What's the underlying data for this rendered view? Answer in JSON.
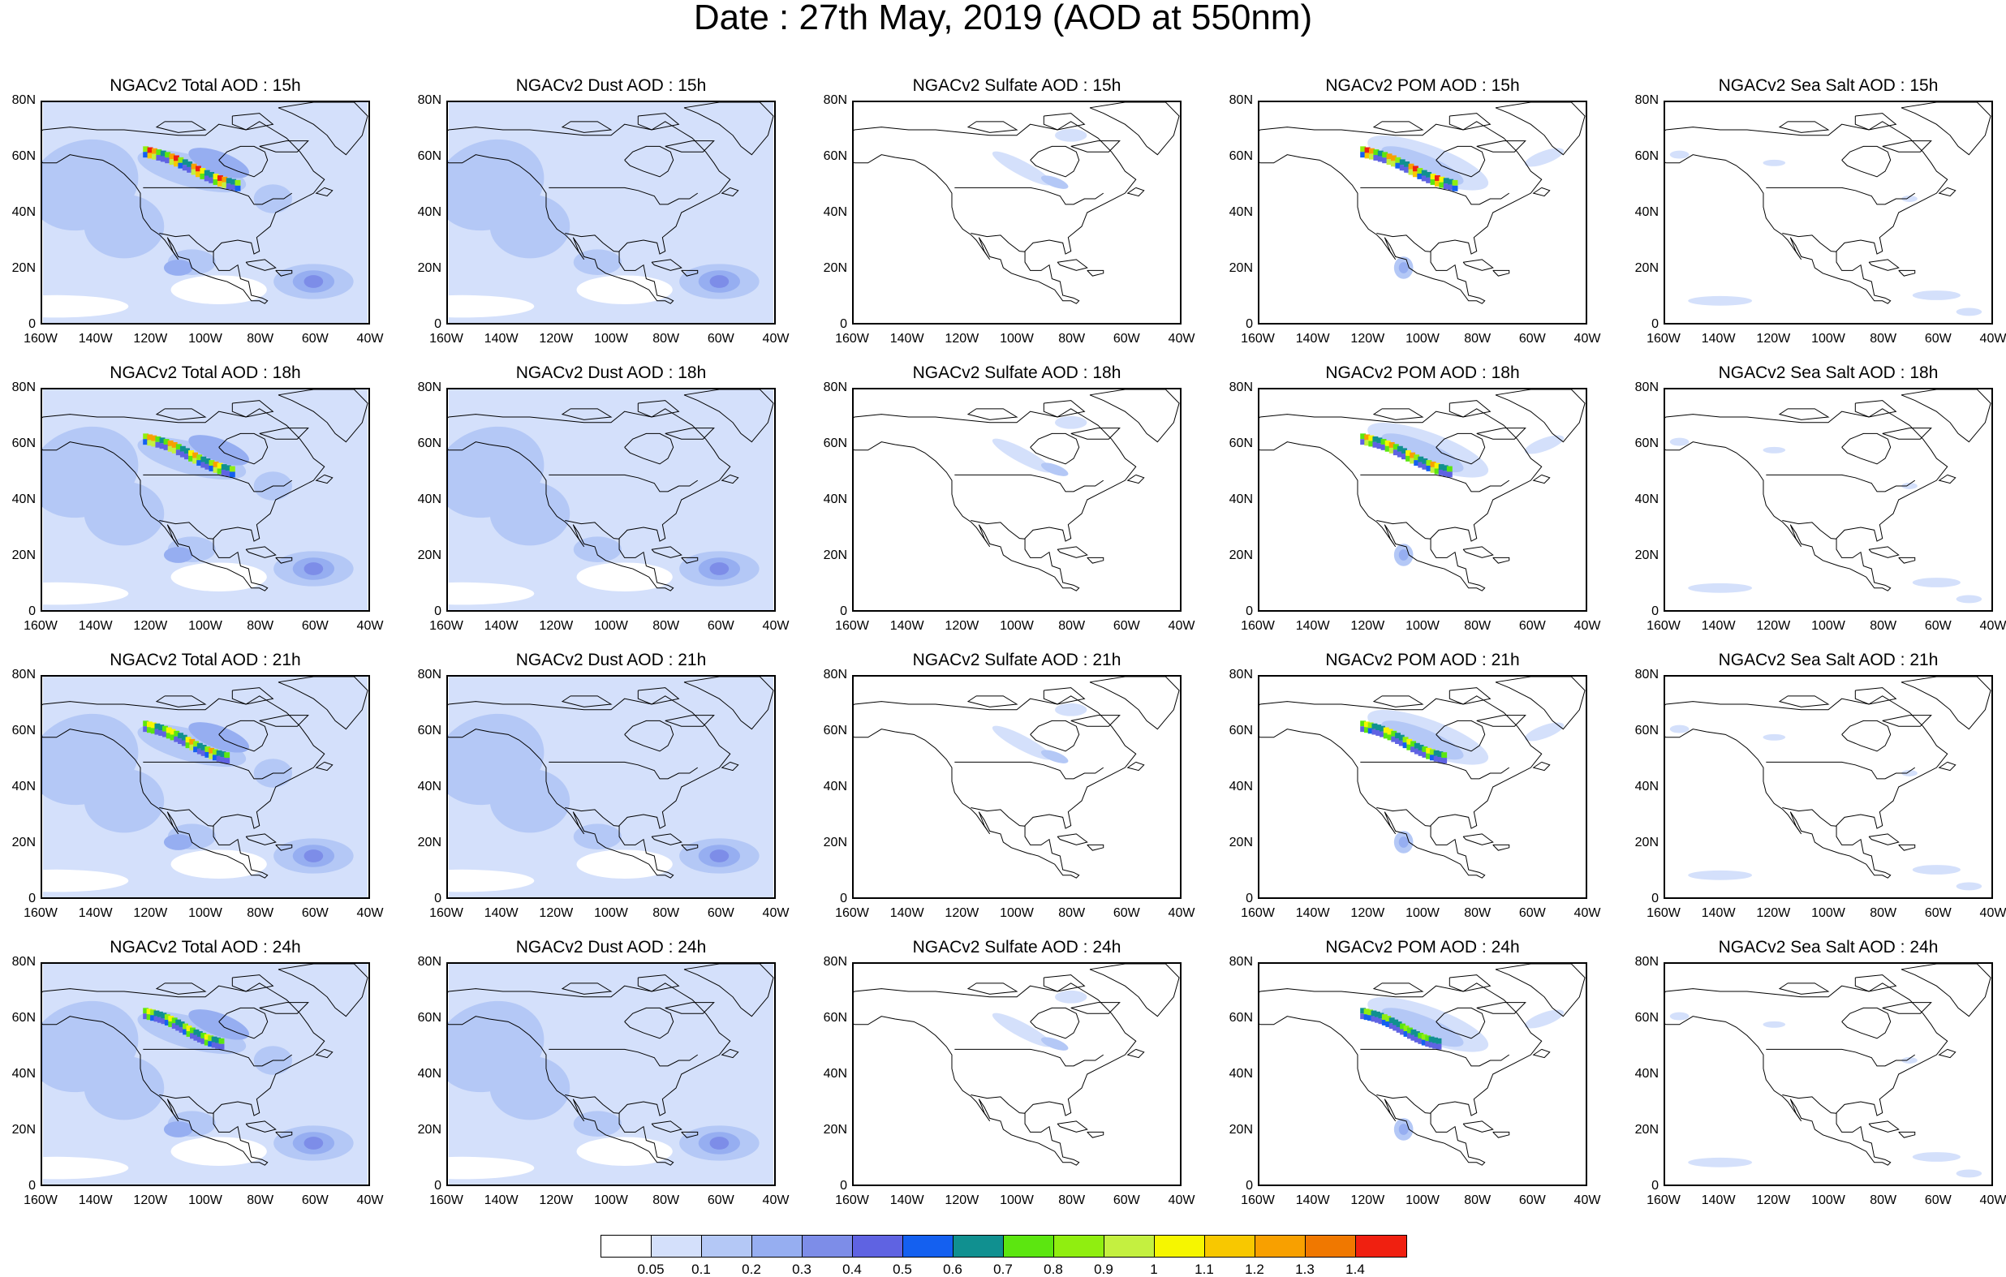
{
  "title": "Date : 27th May, 2019 (AOD at 550nm)",
  "grid": {
    "columns": [
      {
        "kind": "total",
        "label_prefix": "NGACv2 Total AOD"
      },
      {
        "kind": "dust",
        "label_prefix": "NGACv2 Dust AOD"
      },
      {
        "kind": "sulfate",
        "label_prefix": "NGACv2 Sulfate AOD"
      },
      {
        "kind": "pom",
        "label_prefix": "NGACv2 POM AOD"
      },
      {
        "kind": "seasalt",
        "label_prefix": "NGACv2 Sea Salt AOD"
      }
    ],
    "hours": [
      "15h",
      "18h",
      "21h",
      "24h"
    ]
  },
  "panels": [
    [
      "NGACv2 Total AOD : 15h",
      "NGACv2 Dust AOD : 15h",
      "NGACv2 Sulfate AOD : 15h",
      "NGACv2 POM AOD : 15h",
      "NGACv2 Sea Salt AOD : 15h"
    ],
    [
      "NGACv2 Total AOD : 18h",
      "NGACv2 Dust AOD : 18h",
      "NGACv2 Sulfate AOD : 18h",
      "NGACv2 POM AOD : 18h",
      "NGACv2 Sea Salt AOD : 18h"
    ],
    [
      "NGACv2 Total AOD : 21h",
      "NGACv2 Dust AOD : 21h",
      "NGACv2 Sulfate AOD : 21h",
      "NGACv2 POM AOD : 21h",
      "NGACv2 Sea Salt AOD : 21h"
    ],
    [
      "NGACv2 Total AOD : 24h",
      "NGACv2 Dust AOD : 24h",
      "NGACv2 Sulfate AOD : 24h",
      "NGACv2 POM AOD : 24h",
      "NGACv2 Sea Salt  AOD : 24h"
    ]
  ],
  "y_ticks": [
    "80N",
    "60N",
    "40N",
    "20N",
    "0"
  ],
  "x_ticks": [
    "160W",
    "140W",
    "120W",
    "100W",
    "80W",
    "60W",
    "40W"
  ],
  "colorbar": {
    "colors": [
      "#ffffff",
      "#d4e0fb",
      "#b4c8f6",
      "#96aef1",
      "#7d8de8",
      "#5f63e2",
      "#1460f0",
      "#109090",
      "#5ce610",
      "#90ee10",
      "#c4f040",
      "#f6f600",
      "#f8c800",
      "#f8a000",
      "#f07800",
      "#f02010"
    ],
    "labels": [
      "0.05",
      "0.1",
      "0.2",
      "0.3",
      "0.4",
      "0.5",
      "0.6",
      "0.7",
      "0.8",
      "0.9",
      "1",
      "1.1",
      "1.2",
      "1.3",
      "1.4"
    ]
  }
}
